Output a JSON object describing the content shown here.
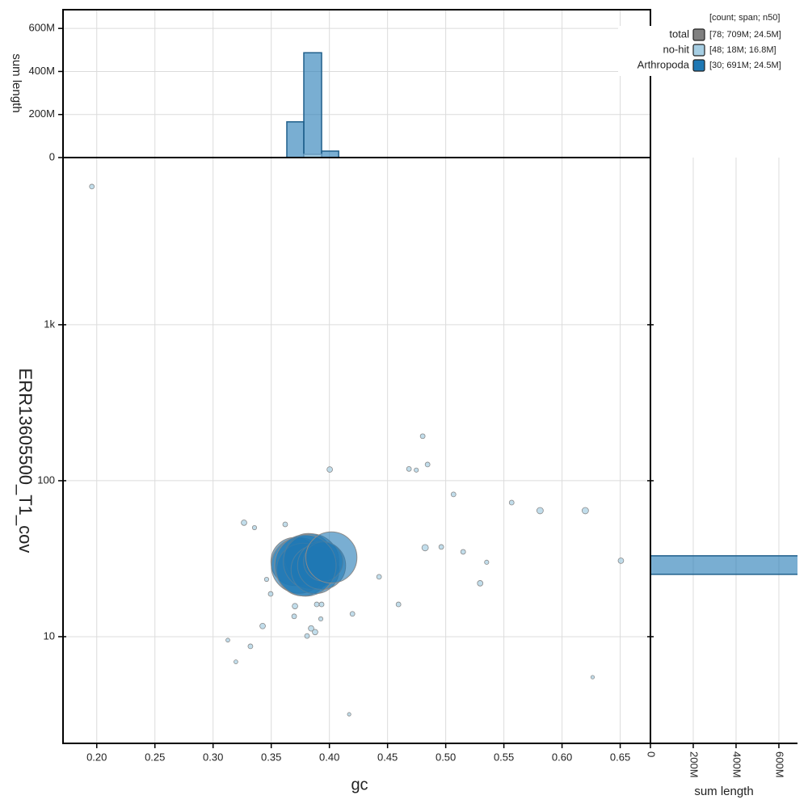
{
  "chart_data": [
    {
      "type": "scatter",
      "xlabel": "gc",
      "ylabel": "ERR13605500_T1_cov",
      "xlim": [
        0.171,
        0.676
      ],
      "xticks": [
        {
          "value": 0.2,
          "label": "0.20"
        },
        0.25,
        {
          "value": 0.3,
          "label": "0.30"
        },
        0.35,
        {
          "value": 0.4,
          "label": "0.40"
        },
        0.45,
        {
          "value": 0.5,
          "label": "0.50"
        },
        0.55,
        {
          "value": 0.6,
          "label": "0.60"
        },
        0.65
      ],
      "ylim": [
        2.07,
        11800
      ],
      "yticks": [
        10,
        100,
        {
          "value": 1000,
          "label": "1k"
        }
      ],
      "log_y": true,
      "grid": true,
      "series": [
        {
          "name": "no-hit",
          "color": "#a6cee3",
          "x": [
            0.1958,
            0.4003,
            0.4802,
            0.4684,
            0.4747,
            0.4844,
            0.5067,
            0.5567,
            0.5811,
            0.62,
            0.6506,
            0.3266,
            0.3356,
            0.362,
            0.4823,
            0.4962,
            0.515,
            0.5352,
            0.5296,
            0.4427,
            0.4594,
            0.346,
            0.3495,
            0.3426,
            0.3704,
            0.3697,
            0.3843,
            0.3877,
            0.3808,
            0.3926,
            0.3933,
            0.3891,
            0.4198,
            0.3127,
            0.3321,
            0.3196,
            0.417,
            0.6263
          ],
          "values": [
            7690,
            118,
            193,
            119,
            117,
            127,
            81.7,
            72.4,
            64.3,
            64.3,
            30.7,
            53.8,
            50,
            52.5,
            37.2,
            37.6,
            35,
            30,
            22,
            24.2,
            16.1,
            23.3,
            18.8,
            11.7,
            15.7,
            13.5,
            11.3,
            10.7,
            10.1,
            13,
            16.1,
            16.1,
            14,
            9.5,
            8.67,
            6.9,
            3.18,
            5.5
          ],
          "sizes": [
            150000,
            200000,
            150000,
            150000,
            120000,
            150000,
            150000,
            150000,
            270000,
            270000,
            200000,
            200000,
            120000,
            150000,
            270000,
            150000,
            150000,
            120000,
            200000,
            150000,
            150000,
            120000,
            150000,
            200000,
            200000,
            150000,
            200000,
            200000,
            150000,
            120000,
            150000,
            150000,
            150000,
            100000,
            150000,
            100000,
            80000,
            80000
          ]
        },
        {
          "name": "Arthropoda",
          "color": "#1f78b4",
          "x": [
            0.3704,
            0.3739,
            0.382,
            0.3773,
            0.3843,
            0.3877,
            0.3933,
            0.3947,
            0.3794,
            0.4017
          ],
          "values": [
            30.3,
            28.6,
            32.2,
            26.9,
            30.3,
            26.9,
            28.6,
            30.3,
            28.6,
            32.2
          ],
          "sizes": [
            15000000,
            20000000,
            15000000,
            18000000,
            20000000,
            15000000,
            15000000,
            10000000,
            24500000,
            17000000
          ]
        }
      ],
      "legend": {
        "title": "[count; span; n50]",
        "entries": [
          {
            "name": "total",
            "color": "#808080",
            "stats": "[78; 709M; 24.5M]"
          },
          {
            "name": "no-hit",
            "color": "#a6cee3",
            "stats": "[48; 18M; 16.8M]"
          },
          {
            "name": "Arthropoda",
            "color": "#1f78b4",
            "stats": "[30; 691M; 24.5M]"
          }
        ]
      }
    },
    {
      "type": "histogram",
      "ylabel": "sum length",
      "bins": [
        0.3634,
        0.378,
        0.3933,
        0.408
      ],
      "ylim": [
        0,
        687000000
      ],
      "yticks": [
        0,
        {
          "value": 200000000,
          "label": "200M"
        },
        {
          "value": 400000000,
          "label": "400M"
        },
        {
          "value": 600000000,
          "label": "600M"
        }
      ],
      "series": [
        {
          "name": "Arthropoda",
          "color": "#1f78b4",
          "values": [
            166000000,
            487000000,
            30000000
          ]
        },
        {
          "name": "no-hit",
          "color": "#a6cee3",
          "values": [
            0,
            15000000,
            0
          ]
        }
      ]
    },
    {
      "type": "histogram-horizontal",
      "xlabel": "sum length",
      "bins": [
        25.1,
        33
      ],
      "xlim": [
        0,
        687000000
      ],
      "xticks": [
        0,
        {
          "value": 200000000,
          "label": "200M"
        },
        {
          "value": 400000000,
          "label": "400M"
        },
        {
          "value": 600000000,
          "label": "600M"
        }
      ],
      "series": [
        {
          "name": "Arthropoda",
          "color": "#1f78b4",
          "values": [
            691000000
          ]
        }
      ]
    }
  ]
}
